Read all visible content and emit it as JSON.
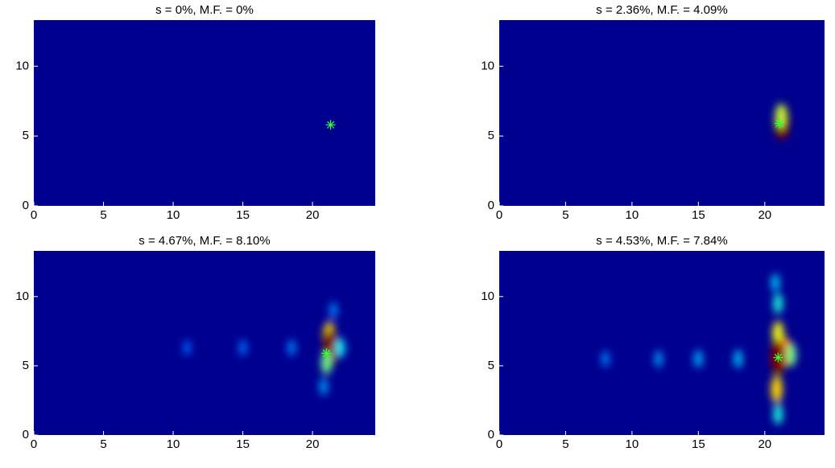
{
  "chart_data": [
    {
      "type": "heatmap",
      "title": "s = 0%, M.F. = 0%",
      "background": "#00008f",
      "xlim": [
        0,
        24.5
      ],
      "ylim": [
        0,
        13.3
      ],
      "xticks": [
        0,
        5,
        10,
        15,
        20
      ],
      "yticks": [
        0,
        5,
        10
      ],
      "hotspots": {
        "x": [],
        "y": [],
        "values": []
      },
      "marker": {
        "x": 21.3,
        "y": 5.8,
        "color": "#33ff33"
      }
    },
    {
      "type": "heatmap",
      "title": "s = 2.36%, M.F. = 4.09%",
      "background": "#00008f",
      "xlim": [
        0,
        24.5
      ],
      "ylim": [
        0,
        13.3
      ],
      "xticks": [
        0,
        5,
        10,
        15,
        20
      ],
      "yticks": [
        0,
        5,
        10
      ],
      "hotspots": {
        "x": [
          21.3,
          21.2
        ],
        "y": [
          6.0,
          6.4
        ],
        "values": [
          1.0,
          0.5
        ]
      },
      "marker": {
        "x": 21.1,
        "y": 5.9,
        "color": "#33ff33"
      }
    },
    {
      "type": "heatmap",
      "title": "s = 4.67%, M.F. = 8.10%",
      "background": "#00008f",
      "xlim": [
        0,
        24.5
      ],
      "ylim": [
        0,
        13.3
      ],
      "xticks": [
        0,
        5,
        10,
        15,
        20
      ],
      "yticks": [
        0,
        5,
        10
      ],
      "hotspots": {
        "x": [
          21.2,
          21.3,
          21.0,
          22.0,
          15.0,
          11.0,
          20.8,
          21.5,
          18.5
        ],
        "y": [
          7.2,
          6.3,
          5.2,
          6.3,
          6.3,
          6.3,
          3.5,
          9.0,
          6.3
        ],
        "values": [
          0.6,
          1.0,
          0.4,
          0.25,
          0.1,
          0.08,
          0.15,
          0.12,
          0.12
        ]
      },
      "marker": {
        "x": 21.0,
        "y": 5.9,
        "color": "#33ff33"
      }
    },
    {
      "type": "heatmap",
      "title": "s = 4.53%, M.F. = 7.84%",
      "background": "#00008f",
      "xlim": [
        0,
        24.5
      ],
      "ylim": [
        0,
        13.3
      ],
      "xticks": [
        0,
        5,
        10,
        15,
        20
      ],
      "yticks": [
        0,
        5,
        10
      ],
      "hotspots": {
        "x": [
          21.6,
          20.9,
          21.0,
          21.0,
          20.8,
          21.0,
          22.0,
          18.0,
          15.0,
          12.0,
          8.0,
          21.0
        ],
        "y": [
          6.0,
          3.3,
          7.3,
          9.5,
          11.0,
          1.5,
          5.8,
          5.5,
          5.5,
          5.5,
          5.5,
          5.6
        ],
        "values": [
          0.7,
          0.6,
          0.55,
          0.3,
          0.2,
          0.3,
          0.4,
          0.2,
          0.18,
          0.15,
          0.12,
          1.0
        ]
      },
      "marker": {
        "x": 21.0,
        "y": 5.6,
        "color": "#33ff33"
      }
    }
  ]
}
